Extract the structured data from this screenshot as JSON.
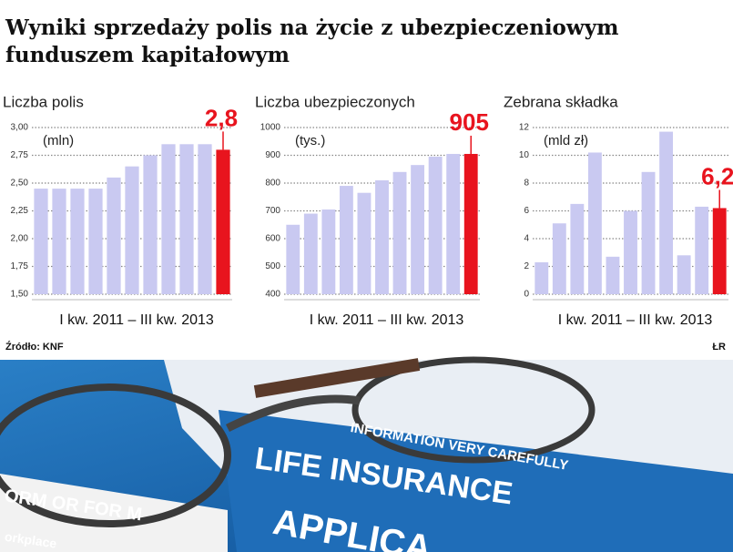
{
  "title": [
    "Wyniki sprzedaży polis na życie z ubezpieczeniowym",
    "funduszem kapitałowym"
  ],
  "source": "Źródło: KNF",
  "credit": "ŁR",
  "photo": {
    "texts": [
      "LIFE INSURANCE",
      "APPLICA",
      "INFORMATION VERY CAREFULLY",
      "ORM OR FOR M",
      "orkplace"
    ]
  },
  "chart_data": [
    {
      "type": "bar",
      "title": "Liczba polis",
      "unit": "(mln)",
      "xlabel": "I kw. 2011 – III kw. 2013",
      "categories": [
        null,
        null,
        null,
        null,
        null,
        null,
        null,
        null,
        null,
        null,
        null
      ],
      "values": [
        2.45,
        2.45,
        2.45,
        2.45,
        2.55,
        2.65,
        2.75,
        2.85,
        2.85,
        2.85,
        2.8
      ],
      "value_labels": [
        null,
        null,
        null,
        null,
        null,
        null,
        null,
        null,
        null,
        null,
        "2,8"
      ],
      "colors": [
        "#c9c9f1",
        "#c9c9f1",
        "#c9c9f1",
        "#c9c9f1",
        "#c9c9f1",
        "#c9c9f1",
        "#c9c9f1",
        "#c9c9f1",
        "#c9c9f1",
        "#c9c9f1",
        "#e8141e"
      ],
      "ylim": [
        1.5,
        3.0
      ],
      "yticks": [
        {
          "value": 1.5,
          "label": "1,50"
        },
        {
          "value": 1.75,
          "label": "1,75"
        },
        {
          "value": 2,
          "label": "2,00"
        },
        {
          "value": 2.25,
          "label": "2,25"
        },
        {
          "value": 2.5,
          "label": "2,50"
        },
        {
          "value": 2.75,
          "label": "2,75"
        },
        {
          "value": 3,
          "label": "3,00"
        }
      ],
      "grid": true
    },
    {
      "type": "bar",
      "title": "Liczba ubezpieczonych",
      "unit": "(tys.)",
      "xlabel": "I kw. 2011 – III kw. 2013",
      "categories": [
        null,
        null,
        null,
        null,
        null,
        null,
        null,
        null,
        null,
        null,
        null
      ],
      "values": [
        650,
        690,
        705,
        790,
        765,
        810,
        840,
        865,
        895,
        905,
        905
      ],
      "value_labels": [
        null,
        null,
        null,
        null,
        null,
        null,
        null,
        null,
        null,
        null,
        "905"
      ],
      "colors": [
        "#c9c9f1",
        "#c9c9f1",
        "#c9c9f1",
        "#c9c9f1",
        "#c9c9f1",
        "#c9c9f1",
        "#c9c9f1",
        "#c9c9f1",
        "#c9c9f1",
        "#c9c9f1",
        "#e8141e"
      ],
      "ylim": [
        400,
        1000
      ],
      "yticks": [
        400,
        500,
        600,
        700,
        800,
        900,
        1000
      ],
      "grid": true
    },
    {
      "type": "bar",
      "title": "Zebrana składka",
      "unit": "(mld zł)",
      "xlabel": "I kw. 2011 – III kw. 2013",
      "categories": [
        null,
        null,
        null,
        null,
        null,
        null,
        null,
        null,
        null,
        null,
        null
      ],
      "values": [
        2.3,
        5.1,
        6.5,
        10.2,
        2.7,
        6.0,
        8.8,
        11.7,
        2.8,
        6.3,
        6.2
      ],
      "value_labels": [
        null,
        null,
        null,
        null,
        null,
        null,
        null,
        null,
        null,
        null,
        "6,2"
      ],
      "colors": [
        "#c9c9f1",
        "#c9c9f1",
        "#c9c9f1",
        "#c9c9f1",
        "#c9c9f1",
        "#c9c9f1",
        "#c9c9f1",
        "#c9c9f1",
        "#c9c9f1",
        "#c9c9f1",
        "#e8141e"
      ],
      "ylim": [
        0,
        12
      ],
      "yticks": [
        0,
        2,
        4,
        6,
        8,
        10,
        12
      ],
      "grid": true
    }
  ]
}
